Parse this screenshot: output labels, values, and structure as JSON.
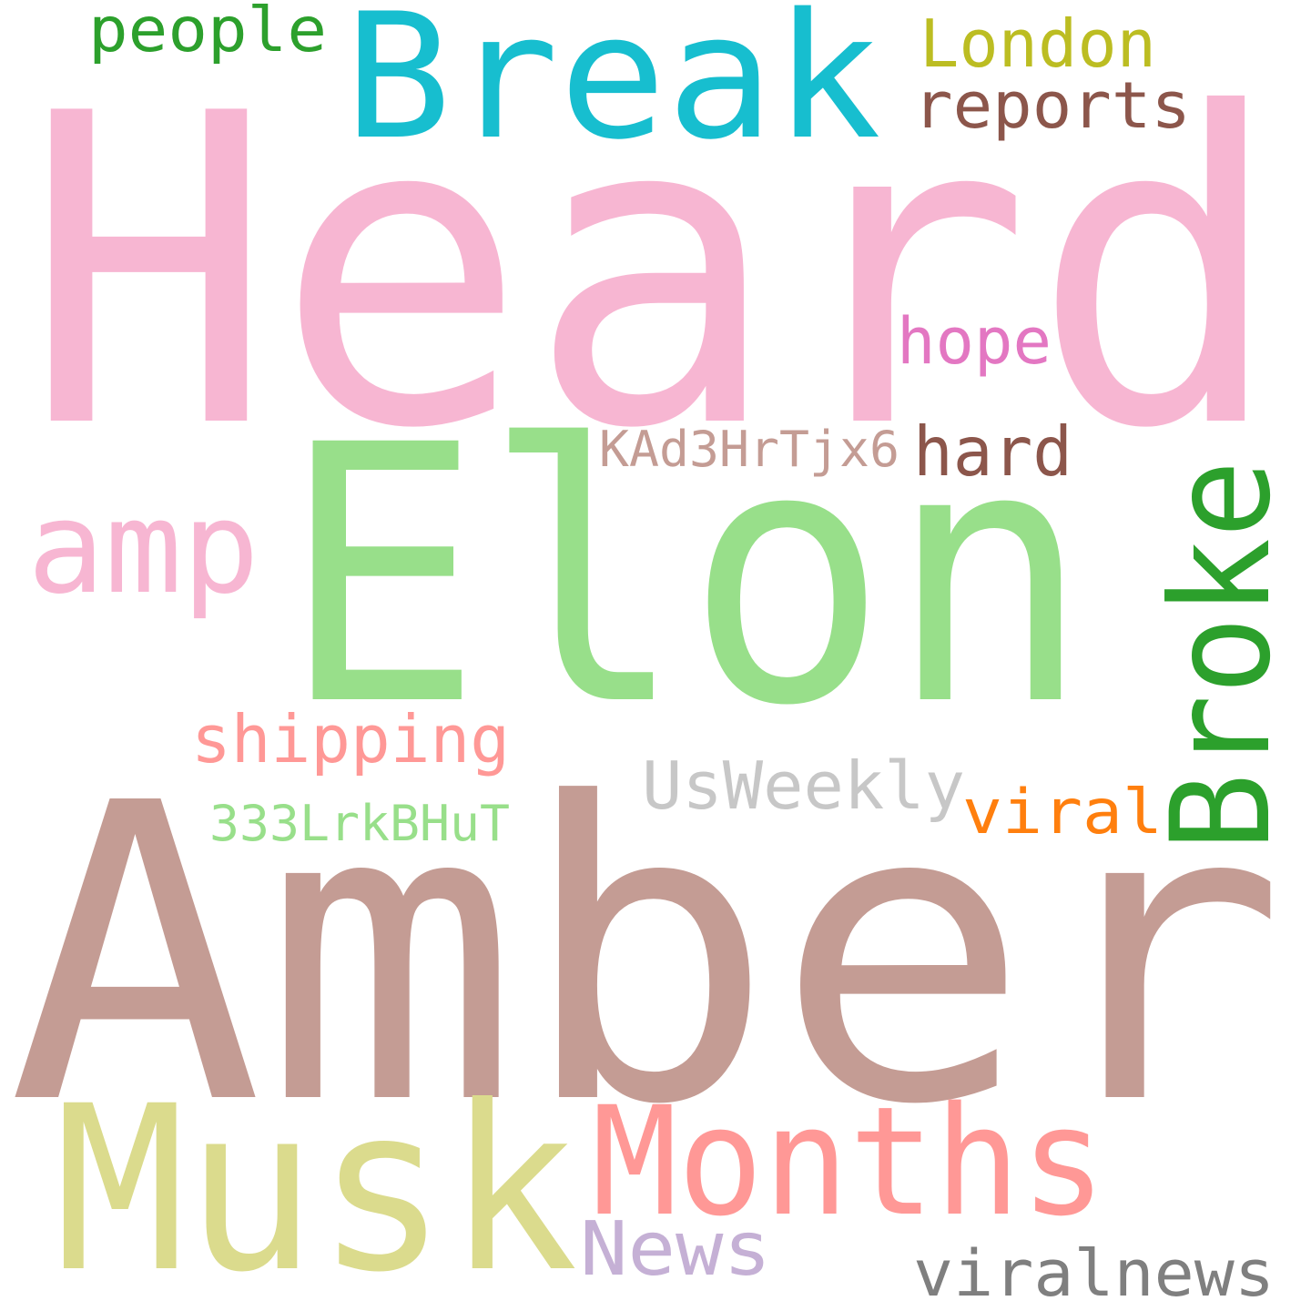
{
  "words": [
    {
      "text": "Heard",
      "color": "#f7b6d2"
    },
    {
      "text": "Elon",
      "color": "#98df8a"
    },
    {
      "text": "Amber",
      "color": "#c49c94"
    },
    {
      "text": "Break",
      "color": "#17becf"
    },
    {
      "text": "Musk",
      "color": "#dbdb8d"
    },
    {
      "text": "Months",
      "color": "#ff9896"
    },
    {
      "text": "Broke",
      "color": "#2ca02c"
    },
    {
      "text": "amp",
      "color": "#f7b6d2"
    },
    {
      "text": "London",
      "color": "#bcbd22"
    },
    {
      "text": "people",
      "color": "#2ca02c"
    },
    {
      "text": "reports",
      "color": "#8c564b"
    },
    {
      "text": "hope",
      "color": "#e377c2"
    },
    {
      "text": "hard",
      "color": "#8c564b"
    },
    {
      "text": "KAd3HrTjx6",
      "color": "#c49c94"
    },
    {
      "text": "shipping",
      "color": "#ff9896"
    },
    {
      "text": "UsWeekly",
      "color": "#c7c7c7"
    },
    {
      "text": "viral",
      "color": "#ff7f0e"
    },
    {
      "text": "333LrkBHuT",
      "color": "#98df8a"
    },
    {
      "text": "News",
      "color": "#c5b0d5"
    },
    {
      "text": "viralnews",
      "color": "#7f7f7f"
    }
  ]
}
